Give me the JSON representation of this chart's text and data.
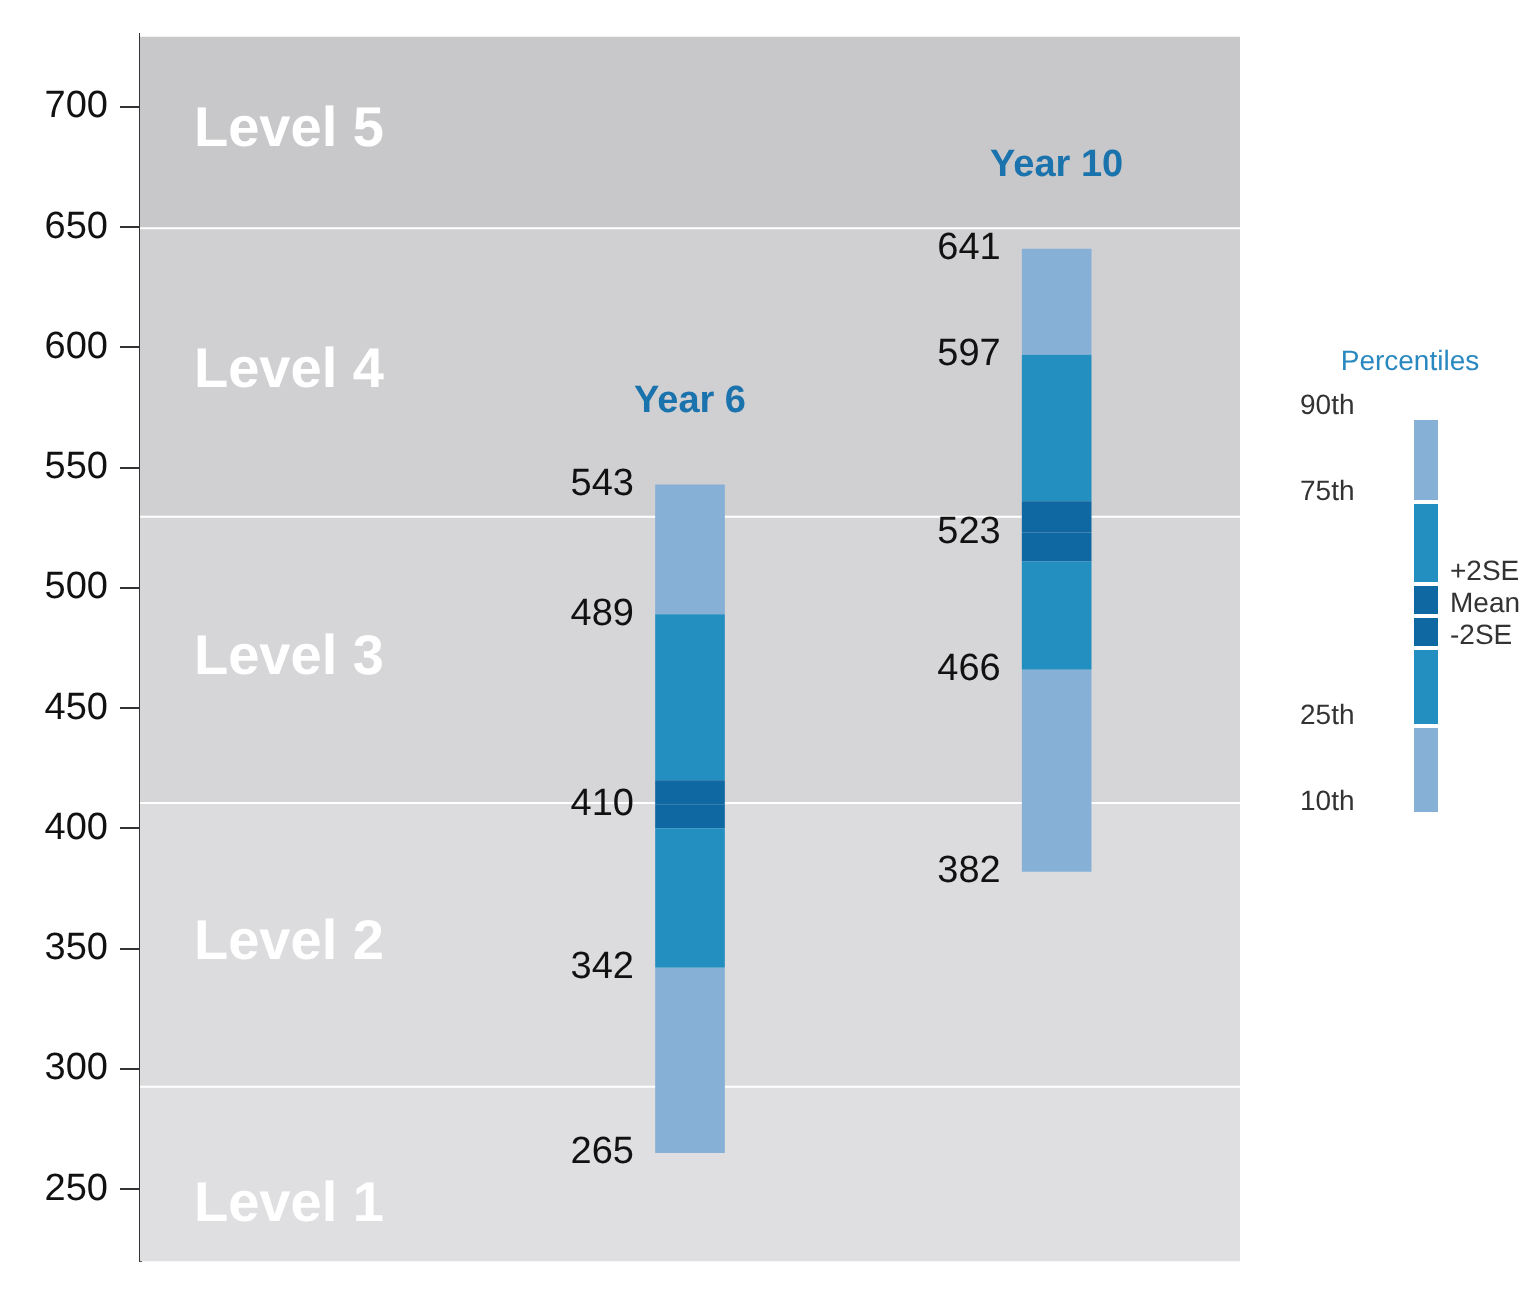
{
  "chart_data": {
    "type": "bar",
    "categories": [
      null,
      "Year 6",
      "Year 10"
    ],
    "series": [
      {
        "color": "#86b0d6",
        "base": [
          null,
          265,
          382
        ],
        "values": [
          null,
          77,
          84
        ]
      },
      {
        "color": "#238fc0",
        "base": [
          null,
          342,
          466
        ],
        "values": [
          null,
          58,
          45
        ]
      },
      {
        "color": "#0f68a2",
        "base": [
          null,
          400,
          511
        ],
        "values": [
          null,
          10,
          12
        ]
      },
      {
        "color": "#0f68a2",
        "base": [
          null,
          410,
          523
        ],
        "values": [
          null,
          10,
          13
        ]
      },
      {
        "color": "#238fc0",
        "base": [
          null,
          420,
          536
        ],
        "values": [
          null,
          69,
          61
        ]
      },
      {
        "color": "#86b0d6",
        "base": [
          null,
          489,
          597
        ],
        "values": [
          null,
          54,
          44
        ]
      }
    ],
    "ylim": [
      220,
      730
    ],
    "yticks": [
      250,
      300,
      350,
      400,
      450,
      500,
      550,
      600,
      650,
      700
    ],
    "tick_labels": "y",
    "annotations": [
      {
        "text": "543",
        "x": "Year 6",
        "y": 543
      },
      {
        "text": "489",
        "x": "Year 6",
        "y": 489
      },
      {
        "text": "410",
        "x": "Year 6",
        "y": 410
      },
      {
        "text": "342",
        "x": "Year 6",
        "y": 342
      },
      {
        "text": "265",
        "x": "Year 6",
        "y": 265
      },
      {
        "text": "641",
        "x": "Year 10",
        "y": 641
      },
      {
        "text": "597",
        "x": "Year 10",
        "y": 597
      },
      {
        "text": "523",
        "x": "Year 10",
        "y": 523
      },
      {
        "text": "466",
        "x": "Year 10",
        "y": 466
      },
      {
        "text": "382",
        "x": "Year 10",
        "y": 382
      },
      "Percentiles",
      "90th",
      "75th",
      "+2SE",
      "Mean",
      "-2SE",
      "25th",
      "10th"
    ],
    "bands": [
      {
        "axis": "y",
        "from": 220,
        "to": 293,
        "label": "Level 1",
        "color": "#dfdfe1"
      },
      {
        "axis": "y",
        "from": 293,
        "to": 411,
        "label": "Level 2",
        "color": "#dcdcde"
      },
      {
        "axis": "y",
        "from": 411,
        "to": 530,
        "label": "Level 3",
        "color": "#d6d6d8"
      },
      {
        "axis": "y",
        "from": 530,
        "to": 650,
        "label": "Level 4",
        "color": "#d0d0d2"
      },
      {
        "axis": "y",
        "from": 650,
        "to": 730,
        "label": "Level 5",
        "color": "#c8c8ca"
      }
    ]
  }
}
